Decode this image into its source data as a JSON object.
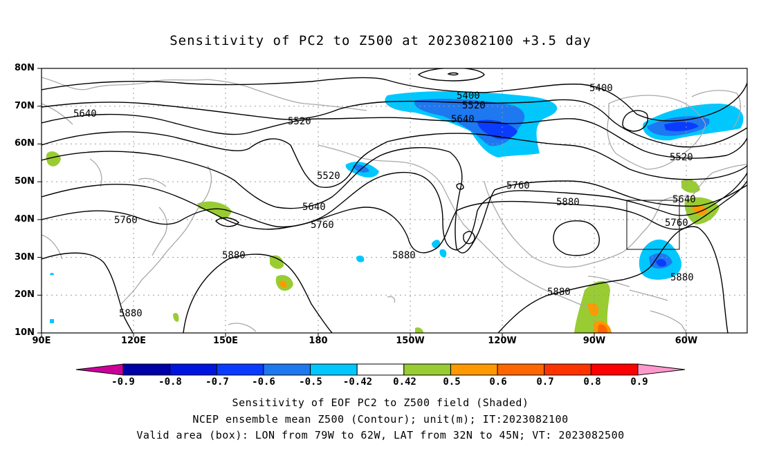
{
  "title": "Sensitivity of PC2 to Z500 at 2023082100 +3.5 day",
  "lat_labels": [
    "80N",
    "70N",
    "60N",
    "50N",
    "40N",
    "30N",
    "20N",
    "10N"
  ],
  "lon_labels": [
    "90E",
    "120E",
    "150E",
    "180",
    "150W",
    "120W",
    "90W",
    "60W"
  ],
  "contour_labels": {
    "c5400a": "5400",
    "c5400b": "5400",
    "c5520a": "5520",
    "c5520b": "5520",
    "c5520c": "5520",
    "c5520d": "5520",
    "c5640a": "5640",
    "c5640b": "5640",
    "c5640c": "5640",
    "c5640d": "5640",
    "c5760a": "5760",
    "c5760b": "5760",
    "c5760c": "5760",
    "c5760d": "5760",
    "c5880a": "5880",
    "c5880b": "5880",
    "c5880c": "5880",
    "c5880d": "5880",
    "c5880e": "5880",
    "c5880f": "5880"
  },
  "colorbar": {
    "labels": [
      "-0.9",
      "-0.8",
      "-0.7",
      "-0.6",
      "-0.5",
      "-0.42",
      "0.42",
      "0.5",
      "0.6",
      "0.7",
      "0.8",
      "0.9"
    ],
    "colors": [
      "#0000a8",
      "#0014e0",
      "#0a3cff",
      "#1e78f0",
      "#00c8ff",
      "#ffffff",
      "#99cc33",
      "#ff9900",
      "#ff6600",
      "#ff3300",
      "#ff0000"
    ],
    "low_end_color": "#cc0099",
    "high_end_color": "#ff99cc"
  },
  "footer": {
    "line1": "Sensitivity of EOF PC2 to Z500 field (Shaded)",
    "line2": "NCEP ensemble mean Z500 (Contour); unit(m); IT:2023082100",
    "line3": "Valid area (box): LON from 79W to 62W, LAT from 32N to 45N; VT: 2023082500"
  }
}
